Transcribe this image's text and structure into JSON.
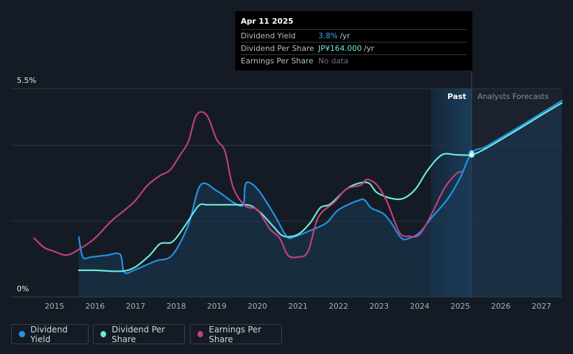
{
  "tooltip": {
    "date": "Apr 11 2025",
    "rows": [
      {
        "label": "Dividend Yield",
        "value": "3.8%",
        "unit": "/yr"
      },
      {
        "label": "Dividend Per Share",
        "value": "JP¥164.000",
        "unit": "/yr"
      },
      {
        "label": "Earnings Per Share",
        "value": "No data",
        "unit": ""
      }
    ]
  },
  "regions": {
    "past_label": "Past",
    "forecast_label": "Analysts Forecasts"
  },
  "legend": [
    {
      "label": "Dividend Yield",
      "color": "#2394e6"
    },
    {
      "label": "Dividend Per Share",
      "color": "#6de9dd"
    },
    {
      "label": "Earnings Per Share",
      "color": "#c2407e"
    }
  ],
  "chart_data": {
    "type": "line",
    "y_axis_labels": [
      "5.5%",
      "0%"
    ],
    "x_ticks": [
      "2015",
      "2016",
      "2017",
      "2018",
      "2019",
      "2020",
      "2021",
      "2022",
      "2023",
      "2024",
      "2025",
      "2026",
      "2027"
    ],
    "ylim": [
      0,
      5.5
    ],
    "xlim": [
      2014.5,
      2027.5
    ],
    "past_start": 2024.27,
    "now": 2025.28,
    "grid": true,
    "series": [
      {
        "name": "Dividend Yield",
        "color": "#2394e6",
        "filled": true,
        "points": [
          [
            2015.6,
            1.58
          ],
          [
            2015.7,
            1.05
          ],
          [
            2015.9,
            1.05
          ],
          [
            2016.3,
            1.1
          ],
          [
            2016.62,
            1.12
          ],
          [
            2016.72,
            0.65
          ],
          [
            2017.0,
            0.72
          ],
          [
            2017.5,
            0.95
          ],
          [
            2017.9,
            1.1
          ],
          [
            2018.3,
            1.9
          ],
          [
            2018.6,
            2.95
          ],
          [
            2019.0,
            2.8
          ],
          [
            2019.4,
            2.5
          ],
          [
            2019.65,
            2.43
          ],
          [
            2019.72,
            3.0
          ],
          [
            2020.0,
            2.85
          ],
          [
            2020.4,
            2.2
          ],
          [
            2020.72,
            1.6
          ],
          [
            2020.9,
            1.58
          ],
          [
            2021.3,
            1.75
          ],
          [
            2021.7,
            1.95
          ],
          [
            2022.0,
            2.3
          ],
          [
            2022.5,
            2.55
          ],
          [
            2022.65,
            2.55
          ],
          [
            2022.8,
            2.35
          ],
          [
            2023.1,
            2.2
          ],
          [
            2023.3,
            1.95
          ],
          [
            2023.55,
            1.55
          ],
          [
            2023.75,
            1.55
          ],
          [
            2024.0,
            1.7
          ],
          [
            2024.3,
            2.1
          ],
          [
            2024.7,
            2.6
          ],
          [
            2025.0,
            3.15
          ],
          [
            2025.28,
            3.8
          ],
          [
            2025.6,
            3.95
          ],
          [
            2026.0,
            4.2
          ],
          [
            2026.5,
            4.52
          ],
          [
            2027.0,
            4.85
          ],
          [
            2027.5,
            5.18
          ]
        ]
      },
      {
        "name": "Dividend Per Share",
        "color": "#6de9dd",
        "filled": false,
        "points": [
          [
            2015.6,
            0.7
          ],
          [
            2016.0,
            0.7
          ],
          [
            2016.8,
            0.7
          ],
          [
            2017.3,
            1.05
          ],
          [
            2017.6,
            1.4
          ],
          [
            2017.9,
            1.45
          ],
          [
            2018.2,
            1.85
          ],
          [
            2018.55,
            2.4
          ],
          [
            2018.75,
            2.43
          ],
          [
            2019.0,
            2.43
          ],
          [
            2019.6,
            2.43
          ],
          [
            2019.85,
            2.4
          ],
          [
            2020.1,
            2.2
          ],
          [
            2020.4,
            1.85
          ],
          [
            2020.65,
            1.6
          ],
          [
            2021.0,
            1.65
          ],
          [
            2021.3,
            1.95
          ],
          [
            2021.55,
            2.35
          ],
          [
            2021.8,
            2.45
          ],
          [
            2022.2,
            2.85
          ],
          [
            2022.5,
            3.0
          ],
          [
            2022.75,
            3.0
          ],
          [
            2022.95,
            2.75
          ],
          [
            2023.3,
            2.6
          ],
          [
            2023.6,
            2.6
          ],
          [
            2023.9,
            2.85
          ],
          [
            2024.2,
            3.35
          ],
          [
            2024.55,
            3.75
          ],
          [
            2024.9,
            3.75
          ],
          [
            2025.28,
            3.75
          ],
          [
            2025.6,
            3.9
          ],
          [
            2026.0,
            4.15
          ],
          [
            2026.5,
            4.47
          ],
          [
            2027.0,
            4.8
          ],
          [
            2027.5,
            5.12
          ]
        ]
      },
      {
        "name": "Earnings Per Share",
        "color": "#c2407e",
        "filled": false,
        "points": [
          [
            2014.5,
            1.55
          ],
          [
            2014.75,
            1.3
          ],
          [
            2015.0,
            1.2
          ],
          [
            2015.3,
            1.1
          ],
          [
            2015.6,
            1.25
          ],
          [
            2016.0,
            1.55
          ],
          [
            2016.4,
            2.0
          ],
          [
            2016.8,
            2.35
          ],
          [
            2017.0,
            2.55
          ],
          [
            2017.3,
            2.95
          ],
          [
            2017.6,
            3.2
          ],
          [
            2017.85,
            3.35
          ],
          [
            2018.1,
            3.75
          ],
          [
            2018.3,
            4.1
          ],
          [
            2018.5,
            4.8
          ],
          [
            2018.75,
            4.8
          ],
          [
            2019.0,
            4.15
          ],
          [
            2019.2,
            3.85
          ],
          [
            2019.4,
            2.9
          ],
          [
            2019.7,
            2.4
          ],
          [
            2020.0,
            2.3
          ],
          [
            2020.3,
            1.8
          ],
          [
            2020.55,
            1.55
          ],
          [
            2020.75,
            1.1
          ],
          [
            2021.0,
            1.05
          ],
          [
            2021.25,
            1.2
          ],
          [
            2021.5,
            2.1
          ],
          [
            2021.9,
            2.5
          ],
          [
            2022.2,
            2.85
          ],
          [
            2022.55,
            2.95
          ],
          [
            2022.7,
            3.1
          ],
          [
            2022.95,
            2.95
          ],
          [
            2023.2,
            2.5
          ],
          [
            2023.5,
            1.7
          ],
          [
            2023.75,
            1.6
          ],
          [
            2024.0,
            1.65
          ],
          [
            2024.3,
            2.2
          ],
          [
            2024.6,
            2.85
          ],
          [
            2024.9,
            3.25
          ],
          [
            2025.05,
            3.3
          ]
        ]
      }
    ]
  }
}
